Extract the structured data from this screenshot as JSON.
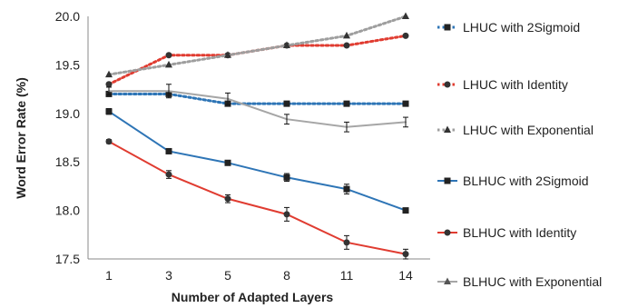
{
  "chart_data": {
    "type": "line",
    "xlabel": "Number of Adapted Layers",
    "ylabel": "Word Error Rate (%)",
    "categories": [
      "1",
      "3",
      "5",
      "8",
      "11",
      "14"
    ],
    "ylim": [
      17.5,
      20.0
    ],
    "yticks": [
      "17.5",
      "18.0",
      "18.5",
      "19.0",
      "19.5",
      "20.0"
    ],
    "grid": false,
    "legend_position": "right",
    "series": [
      {
        "name": "LHUC with 2Sigmoid",
        "values": [
          19.2,
          19.2,
          19.1,
          19.1,
          19.1,
          19.1
        ],
        "color": "#2e75b6",
        "dash": "dotted",
        "marker": "square",
        "errors": null
      },
      {
        "name": "LHUC with Identity",
        "values": [
          19.3,
          19.6,
          19.6,
          19.7,
          19.7,
          19.8
        ],
        "color": "#e03c31",
        "dash": "dotted",
        "marker": "circle",
        "errors": null
      },
      {
        "name": "LHUC with Exponential",
        "values": [
          19.4,
          19.5,
          19.6,
          19.7,
          19.8,
          20.0
        ],
        "color": "#9e9e9e",
        "dash": "dotted",
        "marker": "triangle",
        "errors": null
      },
      {
        "name": "BLHUC with 2Sigmoid",
        "values": [
          19.02,
          18.61,
          18.49,
          18.34,
          18.22,
          18.0
        ],
        "color": "#2e75b6",
        "dash": "solid",
        "marker": "square",
        "errors": [
          0.03,
          0.02,
          0.02,
          0.04,
          0.05,
          0.0
        ]
      },
      {
        "name": "BLHUC with Identity",
        "values": [
          18.71,
          18.37,
          18.12,
          17.96,
          17.67,
          17.55
        ],
        "color": "#e03c31",
        "dash": "solid",
        "marker": "circle",
        "errors": [
          0.02,
          0.04,
          0.04,
          0.07,
          0.07,
          0.05
        ]
      },
      {
        "name": "BLHUC with Exponential",
        "values": [
          19.23,
          19.23,
          19.15,
          18.94,
          18.86,
          18.91
        ],
        "color": "#a6a6a6",
        "dash": "solid",
        "marker": "none",
        "errors": [
          0.04,
          0.07,
          0.06,
          0.05,
          0.05,
          0.05
        ]
      }
    ]
  }
}
